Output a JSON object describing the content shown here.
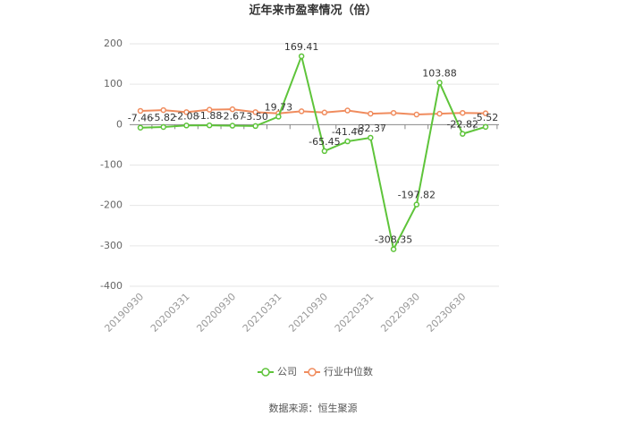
{
  "chart_data": {
    "type": "line",
    "title": "近年来市盈率情况（倍）",
    "categories": [
      "20190930",
      null,
      "20200331",
      null,
      "20200930",
      null,
      "20210331",
      null,
      "20210930",
      null,
      "20220331",
      null,
      "20220930",
      null,
      "20230630",
      null
    ],
    "series": [
      {
        "name": "公司",
        "color": "#5ec43a",
        "values": [
          -7.46,
          -5.82,
          -2.08,
          -1.88,
          -2.67,
          -3.5,
          19.73,
          169.41,
          -65.45,
          -41.46,
          -32.37,
          -308.35,
          -197.82,
          103.88,
          -22.82,
          -5.52
        ],
        "value_labels": [
          "-7.46",
          "-5.82",
          "-2.08",
          "-1.88",
          "-2.67",
          "-3.50",
          "19.73",
          "169.41",
          "-65.45",
          "-41.46",
          "-32.37",
          "-308.35",
          "-197.82",
          "103.88",
          "-22.82",
          "-5.52"
        ]
      },
      {
        "name": "行业中位数",
        "color": "#f08c5e",
        "values": [
          34,
          36,
          31,
          37,
          38,
          31,
          28,
          33,
          30,
          35,
          27,
          29,
          25,
          27,
          29,
          28
        ]
      }
    ],
    "ylim": [
      -400,
      200
    ],
    "yticks": [
      -400,
      -300,
      -200,
      -100,
      0,
      100,
      200
    ],
    "grid": true,
    "legend": "bottom",
    "source": "数据来源：恒生聚源"
  }
}
